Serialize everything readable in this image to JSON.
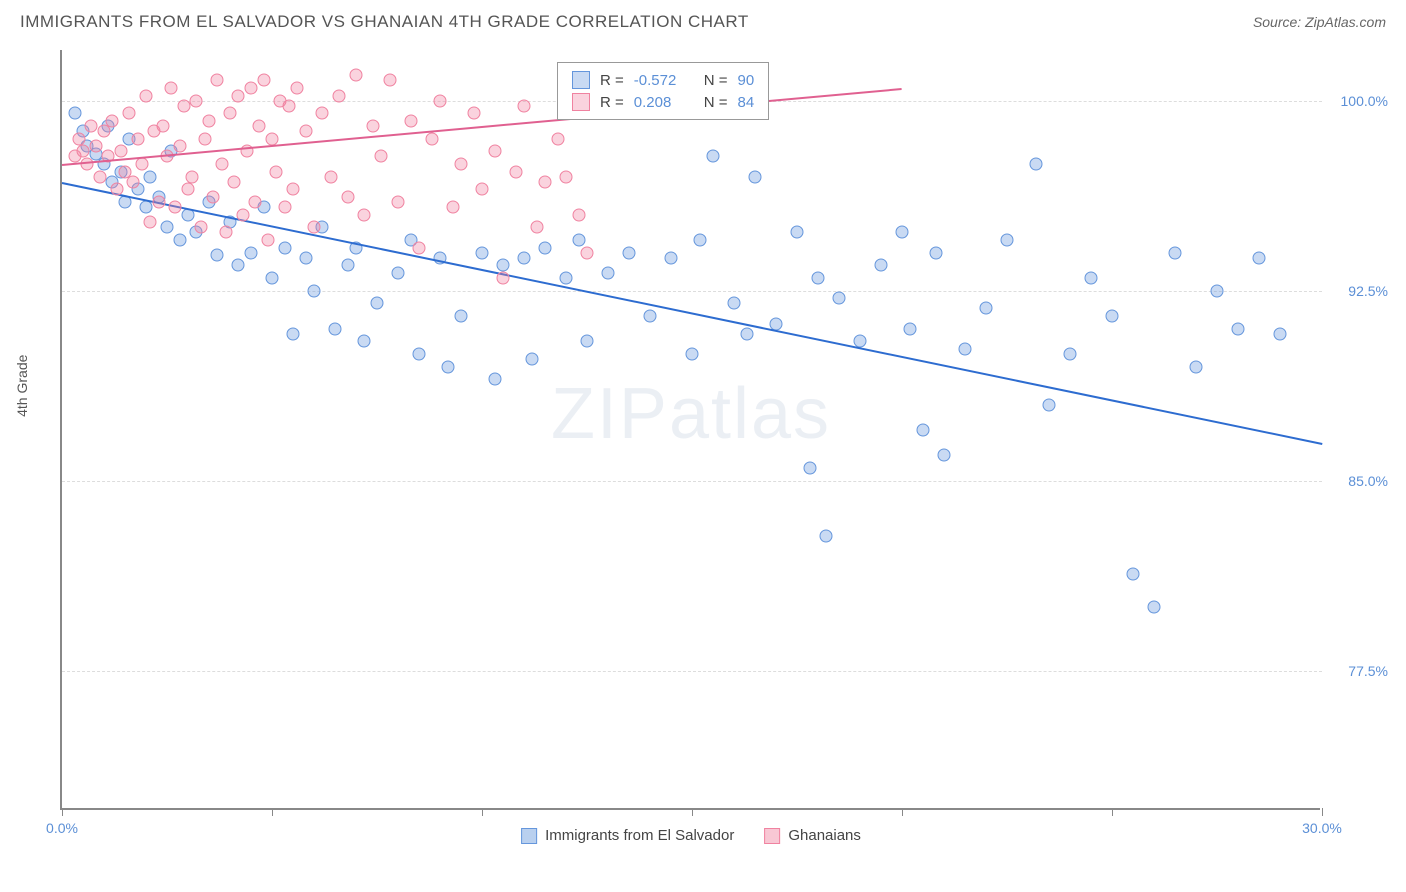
{
  "header": {
    "title": "IMMIGRANTS FROM EL SALVADOR VS GHANAIAN 4TH GRADE CORRELATION CHART",
    "source_label": "Source: ",
    "source_value": "ZipAtlas.com"
  },
  "chart": {
    "type": "scatter",
    "ylabel": "4th Grade",
    "watermark": "ZIPatlas",
    "xlim": [
      0,
      30
    ],
    "ylim": [
      72,
      102
    ],
    "xtick_positions": [
      0,
      5,
      10,
      15,
      20,
      25,
      30
    ],
    "xtick_labels_shown": {
      "0": "0.0%",
      "30": "30.0%"
    },
    "ytick_positions": [
      77.5,
      85.0,
      92.5,
      100.0
    ],
    "ytick_labels": [
      "77.5%",
      "85.0%",
      "92.5%",
      "100.0%"
    ],
    "background_color": "#ffffff",
    "grid_color": "#dddddd",
    "axis_color": "#888888",
    "tick_label_color": "#5b8fd6",
    "series": [
      {
        "name": "Immigrants from El Salvador",
        "color_fill": "rgba(100,150,220,0.35)",
        "color_stroke": "#6596dc",
        "marker_size": 13,
        "r_label": "R = ",
        "r_value": "-0.572",
        "n_label": "N = ",
        "n_value": "90",
        "trend": {
          "x1": 0,
          "y1": 96.8,
          "x2": 30,
          "y2": 86.5,
          "color": "#2d6cd0",
          "width": 2
        },
        "points": [
          [
            0.3,
            99.5
          ],
          [
            0.5,
            98.8
          ],
          [
            0.6,
            98.2
          ],
          [
            0.8,
            97.9
          ],
          [
            1.0,
            97.5
          ],
          [
            1.1,
            99.0
          ],
          [
            1.2,
            96.8
          ],
          [
            1.4,
            97.2
          ],
          [
            1.5,
            96.0
          ],
          [
            1.6,
            98.5
          ],
          [
            1.8,
            96.5
          ],
          [
            2.0,
            95.8
          ],
          [
            2.1,
            97.0
          ],
          [
            2.3,
            96.2
          ],
          [
            2.5,
            95.0
          ],
          [
            2.6,
            98.0
          ],
          [
            2.8,
            94.5
          ],
          [
            3.0,
            95.5
          ],
          [
            3.2,
            94.8
          ],
          [
            3.5,
            96.0
          ],
          [
            3.7,
            93.9
          ],
          [
            4.0,
            95.2
          ],
          [
            4.2,
            93.5
          ],
          [
            4.5,
            94.0
          ],
          [
            4.8,
            95.8
          ],
          [
            5.0,
            93.0
          ],
          [
            5.3,
            94.2
          ],
          [
            5.5,
            90.8
          ],
          [
            5.8,
            93.8
          ],
          [
            6.0,
            92.5
          ],
          [
            6.2,
            95.0
          ],
          [
            6.5,
            91.0
          ],
          [
            6.8,
            93.5
          ],
          [
            7.0,
            94.2
          ],
          [
            7.2,
            90.5
          ],
          [
            7.5,
            92.0
          ],
          [
            8.0,
            93.2
          ],
          [
            8.3,
            94.5
          ],
          [
            8.5,
            90.0
          ],
          [
            9.0,
            93.8
          ],
          [
            9.2,
            89.5
          ],
          [
            9.5,
            91.5
          ],
          [
            10.0,
            94.0
          ],
          [
            10.3,
            89.0
          ],
          [
            10.5,
            93.5
          ],
          [
            11.0,
            93.8
          ],
          [
            11.2,
            89.8
          ],
          [
            11.5,
            94.2
          ],
          [
            12.0,
            93.0
          ],
          [
            12.3,
            94.5
          ],
          [
            12.5,
            90.5
          ],
          [
            13.0,
            93.2
          ],
          [
            13.5,
            94.0
          ],
          [
            14.0,
            91.5
          ],
          [
            14.5,
            93.8
          ],
          [
            15.0,
            90.0
          ],
          [
            15.2,
            94.5
          ],
          [
            15.5,
            97.8
          ],
          [
            16.0,
            92.0
          ],
          [
            16.3,
            90.8
          ],
          [
            16.5,
            97.0
          ],
          [
            17.0,
            91.2
          ],
          [
            17.5,
            94.8
          ],
          [
            17.8,
            85.5
          ],
          [
            18.0,
            93.0
          ],
          [
            18.2,
            82.8
          ],
          [
            18.5,
            92.2
          ],
          [
            19.0,
            90.5
          ],
          [
            19.5,
            93.5
          ],
          [
            20.0,
            94.8
          ],
          [
            20.2,
            91.0
          ],
          [
            20.5,
            87.0
          ],
          [
            20.8,
            94.0
          ],
          [
            21.0,
            86.0
          ],
          [
            21.5,
            90.2
          ],
          [
            22.0,
            91.8
          ],
          [
            22.5,
            94.5
          ],
          [
            23.2,
            97.5
          ],
          [
            23.5,
            88.0
          ],
          [
            24.0,
            90.0
          ],
          [
            24.5,
            93.0
          ],
          [
            25.0,
            91.5
          ],
          [
            25.5,
            81.3
          ],
          [
            26.0,
            80.0
          ],
          [
            26.5,
            94.0
          ],
          [
            27.0,
            89.5
          ],
          [
            27.5,
            92.5
          ],
          [
            28.0,
            91.0
          ],
          [
            28.5,
            93.8
          ],
          [
            29.0,
            90.8
          ]
        ]
      },
      {
        "name": "Ghanaians",
        "color_fill": "rgba(240,130,160,0.35)",
        "color_stroke": "#f082a0",
        "marker_size": 13,
        "r_label": "R = ",
        "r_value": "0.208",
        "n_label": "N = ",
        "n_value": "84",
        "trend": {
          "x1": 0,
          "y1": 97.5,
          "x2": 20,
          "y2": 100.5,
          "color": "#e06090",
          "width": 1.5,
          "dashed_after": 12
        },
        "points": [
          [
            0.3,
            97.8
          ],
          [
            0.4,
            98.5
          ],
          [
            0.5,
            98.0
          ],
          [
            0.6,
            97.5
          ],
          [
            0.7,
            99.0
          ],
          [
            0.8,
            98.2
          ],
          [
            0.9,
            97.0
          ],
          [
            1.0,
            98.8
          ],
          [
            1.1,
            97.8
          ],
          [
            1.2,
            99.2
          ],
          [
            1.3,
            96.5
          ],
          [
            1.4,
            98.0
          ],
          [
            1.5,
            97.2
          ],
          [
            1.6,
            99.5
          ],
          [
            1.7,
            96.8
          ],
          [
            1.8,
            98.5
          ],
          [
            1.9,
            97.5
          ],
          [
            2.0,
            100.2
          ],
          [
            2.1,
            95.2
          ],
          [
            2.2,
            98.8
          ],
          [
            2.3,
            96.0
          ],
          [
            2.4,
            99.0
          ],
          [
            2.5,
            97.8
          ],
          [
            2.6,
            100.5
          ],
          [
            2.7,
            95.8
          ],
          [
            2.8,
            98.2
          ],
          [
            2.9,
            99.8
          ],
          [
            3.0,
            96.5
          ],
          [
            3.1,
            97.0
          ],
          [
            3.2,
            100.0
          ],
          [
            3.3,
            95.0
          ],
          [
            3.4,
            98.5
          ],
          [
            3.5,
            99.2
          ],
          [
            3.6,
            96.2
          ],
          [
            3.7,
            100.8
          ],
          [
            3.8,
            97.5
          ],
          [
            3.9,
            94.8
          ],
          [
            4.0,
            99.5
          ],
          [
            4.1,
            96.8
          ],
          [
            4.2,
            100.2
          ],
          [
            4.3,
            95.5
          ],
          [
            4.4,
            98.0
          ],
          [
            4.5,
            100.5
          ],
          [
            4.6,
            96.0
          ],
          [
            4.7,
            99.0
          ],
          [
            4.8,
            100.8
          ],
          [
            4.9,
            94.5
          ],
          [
            5.0,
            98.5
          ],
          [
            5.1,
            97.2
          ],
          [
            5.2,
            100.0
          ],
          [
            5.3,
            95.8
          ],
          [
            5.4,
            99.8
          ],
          [
            5.5,
            96.5
          ],
          [
            5.6,
            100.5
          ],
          [
            5.8,
            98.8
          ],
          [
            6.0,
            95.0
          ],
          [
            6.2,
            99.5
          ],
          [
            6.4,
            97.0
          ],
          [
            6.6,
            100.2
          ],
          [
            6.8,
            96.2
          ],
          [
            7.0,
            101.0
          ],
          [
            7.2,
            95.5
          ],
          [
            7.4,
            99.0
          ],
          [
            7.6,
            97.8
          ],
          [
            7.8,
            100.8
          ],
          [
            8.0,
            96.0
          ],
          [
            8.3,
            99.2
          ],
          [
            8.5,
            94.2
          ],
          [
            8.8,
            98.5
          ],
          [
            9.0,
            100.0
          ],
          [
            9.3,
            95.8
          ],
          [
            9.5,
            97.5
          ],
          [
            9.8,
            99.5
          ],
          [
            10.0,
            96.5
          ],
          [
            10.3,
            98.0
          ],
          [
            10.5,
            93.0
          ],
          [
            10.8,
            97.2
          ],
          [
            11.0,
            99.8
          ],
          [
            11.3,
            95.0
          ],
          [
            11.5,
            96.8
          ],
          [
            11.8,
            98.5
          ],
          [
            12.0,
            97.0
          ],
          [
            12.3,
            95.5
          ],
          [
            12.5,
            94.0
          ]
        ]
      }
    ],
    "bottom_legend": [
      {
        "label": "Immigrants from El Salvador",
        "fill": "rgba(100,150,220,0.45)",
        "stroke": "#6596dc"
      },
      {
        "label": "Ghanaians",
        "fill": "rgba(240,130,160,0.45)",
        "stroke": "#f082a0"
      }
    ]
  }
}
